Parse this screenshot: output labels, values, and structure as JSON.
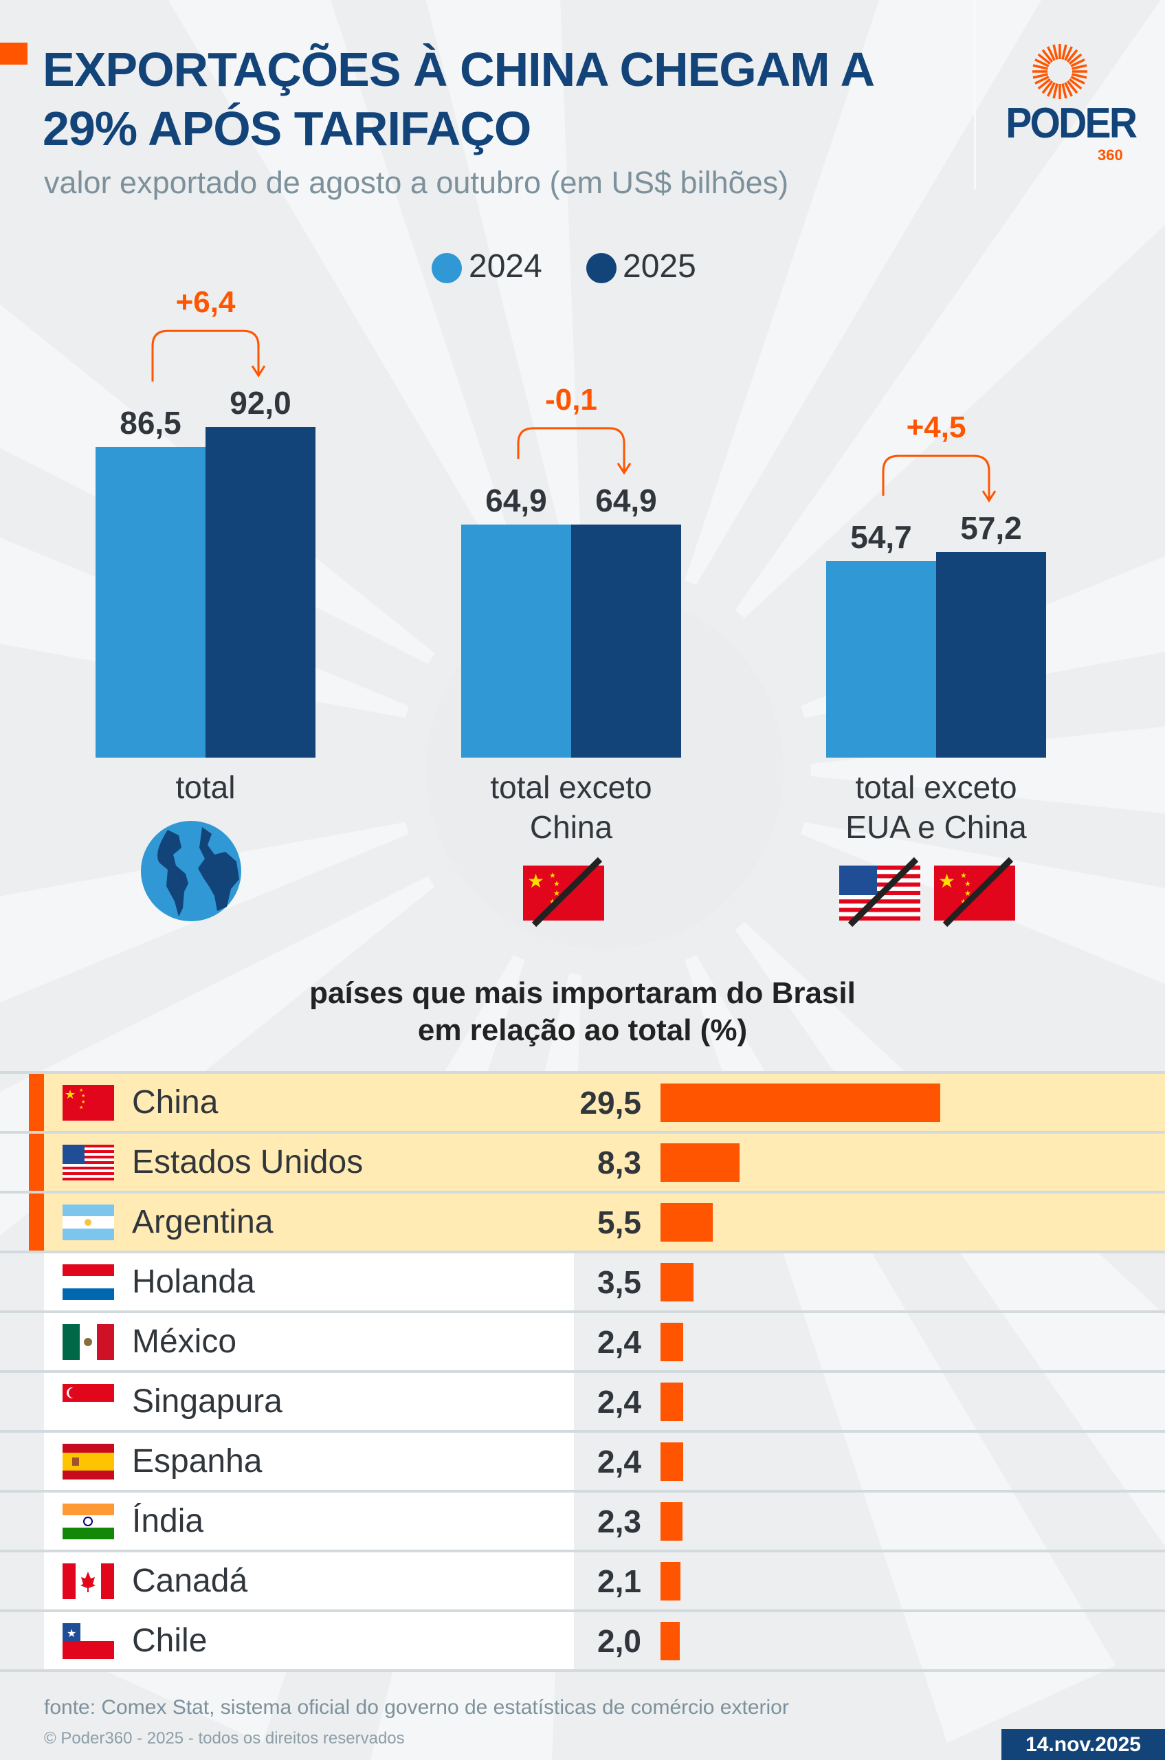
{
  "header": {
    "title_line1": "EXPORTAÇÕES À CHINA CHEGAM A",
    "title_line2": "29% APÓS TARIFAÇO",
    "subtitle": "valor exportado de agosto a outubro (em US$ bilhões)",
    "logo": "PODER",
    "logo_sub": "360"
  },
  "colors": {
    "y2024": "#2f98d5",
    "y2025": "#124379",
    "accent": "#ff5500",
    "highlight": "#ffebb3",
    "navy": "#124379"
  },
  "chart_data": [
    {
      "type": "bar",
      "title": "valor exportado de agosto a outubro (em US$ bilhões)",
      "legend": [
        "2024",
        "2025"
      ],
      "legend_placement": "top-center",
      "groups": [
        {
          "label": "total",
          "label_lines": [
            "total"
          ],
          "icon": "globe-icon",
          "values": [
            86.5,
            92.0
          ],
          "value_labels": [
            "86,5",
            "92,0"
          ],
          "delta": "+6,4"
        },
        {
          "label": "total exceto China",
          "label_lines": [
            "total exceto",
            "China"
          ],
          "icon": "crossed-china-flag-icon",
          "values": [
            64.9,
            64.9
          ],
          "value_labels": [
            "64,9",
            "64,9"
          ],
          "delta": "-0,1"
        },
        {
          "label": "total exceto EUA e China",
          "label_lines": [
            "total exceto",
            "EUA e China"
          ],
          "icon": "crossed-us-china-flags-icon",
          "values": [
            54.7,
            57.2
          ],
          "value_labels": [
            "54,7",
            "57,2"
          ],
          "delta": "+4,5"
        }
      ],
      "ylim": [
        0,
        95
      ]
    },
    {
      "type": "bar",
      "orientation": "horizontal",
      "title": "países que mais importaram do Brasil em relação ao total (%)",
      "title_lines": [
        "países que mais importaram do Brasil",
        "em relação ao total (%)"
      ],
      "rows": [
        {
          "country": "China",
          "flag": "cn",
          "value": 29.5,
          "label": "29,5",
          "highlight": true
        },
        {
          "country": "Estados Unidos",
          "flag": "us",
          "value": 8.3,
          "label": "8,3",
          "highlight": true
        },
        {
          "country": "Argentina",
          "flag": "ar",
          "value": 5.5,
          "label": "5,5",
          "highlight": true
        },
        {
          "country": "Holanda",
          "flag": "nl",
          "value": 3.5,
          "label": "3,5",
          "highlight": false
        },
        {
          "country": "México",
          "flag": "mx",
          "value": 2.4,
          "label": "2,4",
          "highlight": false
        },
        {
          "country": "Singapura",
          "flag": "sg",
          "value": 2.4,
          "label": "2,4",
          "highlight": false
        },
        {
          "country": "Espanha",
          "flag": "es",
          "value": 2.4,
          "label": "2,4",
          "highlight": false
        },
        {
          "country": "Índia",
          "flag": "in",
          "value": 2.3,
          "label": "2,3",
          "highlight": false
        },
        {
          "country": "Canadá",
          "flag": "ca",
          "value": 2.1,
          "label": "2,1",
          "highlight": false
        },
        {
          "country": "Chile",
          "flag": "cl",
          "value": 2.0,
          "label": "2,0",
          "highlight": false
        }
      ]
    }
  ],
  "footer": {
    "source": "fonte: Comex Stat, sistema oficial do governo de estatísticas de comércio exterior",
    "copyright": "© Poder360 - 2025 - todos os direitos reservados",
    "date": "14.nov.2025"
  }
}
